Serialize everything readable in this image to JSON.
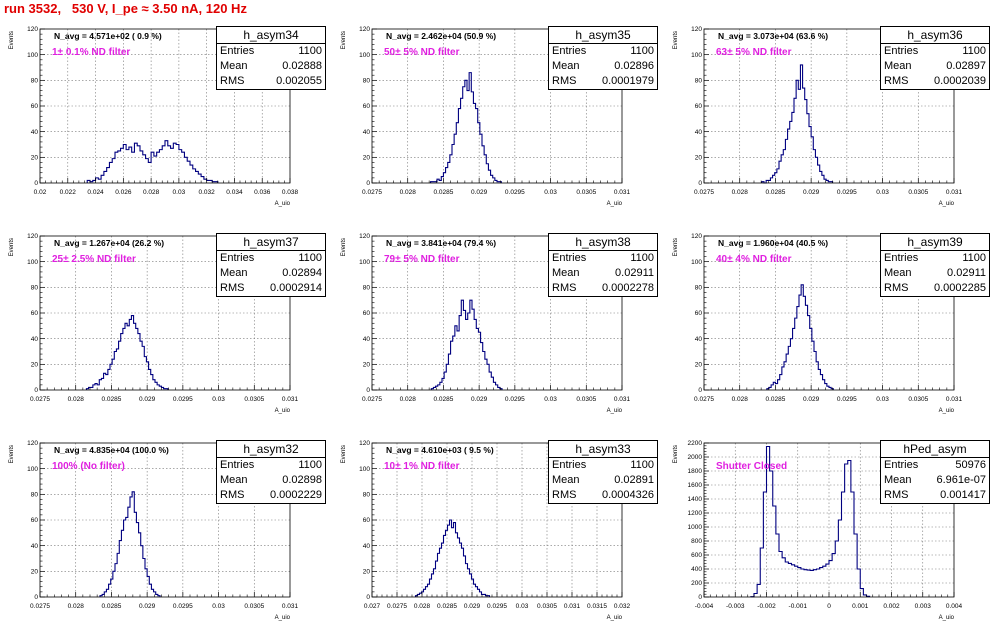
{
  "title": "run 3532,   530 V, I_pe ≈ 3.50 nA, 120 Hz",
  "colors": {
    "title": "#e00000",
    "note": "#e020e0",
    "line": "#000080",
    "grid": "#777777"
  },
  "y_axis_label": "Events",
  "x_axis_label": "A_uio",
  "chart_data": [
    {
      "type": "bar",
      "name": "h_asym34",
      "navg": "N_avg = 4.571e+02 ( 0.9 %)",
      "note": "1± 0.1% ND filter",
      "stats": {
        "entries": "1100",
        "mean": "0.02888",
        "rms": "0.002055"
      },
      "xlim": [
        0.02,
        0.038
      ],
      "ylim": [
        0,
        120
      ],
      "xticks": [
        "0.02",
        "0.022",
        "0.024",
        "0.026",
        "0.028",
        "0.03",
        "0.032",
        "0.034",
        "0.036",
        "0.038"
      ],
      "yticks": [
        "0",
        "20",
        "40",
        "60",
        "80",
        "100",
        "120"
      ],
      "bin_width": 0.0002,
      "x_start": 0.0234,
      "values": [
        2,
        1,
        2,
        4,
        3,
        6,
        9,
        12,
        16,
        19,
        24,
        25,
        27,
        30,
        26,
        28,
        24,
        31,
        29,
        25,
        22,
        19,
        16,
        24,
        21,
        24,
        26,
        29,
        33,
        29,
        27,
        31,
        30,
        26,
        24,
        20,
        17,
        14,
        11,
        9,
        7,
        5,
        3,
        2,
        2,
        1,
        1
      ]
    },
    {
      "type": "bar",
      "name": "h_asym35",
      "navg": "N_avg = 2.462e+04 (50.9 %)",
      "note": "50± 5% ND filter",
      "stats": {
        "entries": "1100",
        "mean": "0.02896",
        "rms": "0.0001979"
      },
      "xlim": [
        0.0275,
        0.031
      ],
      "ylim": [
        0,
        120
      ],
      "xticks": [
        "0.0275",
        "0.028",
        "0.0285",
        "0.029",
        "0.0295",
        "0.03",
        "0.0305",
        "0.031"
      ],
      "yticks": [
        "0",
        "20",
        "40",
        "60",
        "80",
        "100",
        "120"
      ],
      "bin_width": 3e-05,
      "x_start": 0.02832,
      "values": [
        1,
        1,
        1,
        3,
        2,
        5,
        8,
        12,
        16,
        22,
        30,
        38,
        47,
        58,
        66,
        75,
        80,
        72,
        86,
        71,
        62,
        58,
        47,
        38,
        29,
        22,
        15,
        10,
        6,
        4,
        2,
        1,
        1
      ]
    },
    {
      "type": "bar",
      "name": "h_asym36",
      "navg": "N_avg = 3.073e+04 (63.6 %)",
      "note": "63± 5% ND filter",
      "stats": {
        "entries": "1100",
        "mean": "0.02897",
        "rms": "0.0002039"
      },
      "xlim": [
        0.0275,
        0.031
      ],
      "ylim": [
        0,
        120
      ],
      "xticks": [
        "0.0275",
        "0.028",
        "0.0285",
        "0.029",
        "0.0295",
        "0.03",
        "0.0305",
        "0.031"
      ],
      "yticks": [
        "0",
        "20",
        "40",
        "60",
        "80",
        "100",
        "120"
      ],
      "bin_width": 3e-05,
      "x_start": 0.02831,
      "values": [
        1,
        0,
        2,
        2,
        4,
        6,
        8,
        11,
        17,
        22,
        26,
        34,
        42,
        48,
        55,
        66,
        80,
        73,
        92,
        74,
        65,
        54,
        44,
        36,
        26,
        20,
        14,
        9,
        6,
        3,
        2,
        1,
        1
      ]
    },
    {
      "type": "bar",
      "name": "h_asym37",
      "navg": "N_avg = 1.267e+04 (26.2 %)",
      "note": "25± 2.5% ND filter",
      "stats": {
        "entries": "1100",
        "mean": "0.02894",
        "rms": "0.0002914"
      },
      "xlim": [
        0.0275,
        0.031
      ],
      "ylim": [
        0,
        120
      ],
      "xticks": [
        "0.0275",
        "0.028",
        "0.0285",
        "0.029",
        "0.0295",
        "0.03",
        "0.0305",
        "0.031"
      ],
      "yticks": [
        "0",
        "20",
        "40",
        "60",
        "80",
        "100",
        "120"
      ],
      "bin_width": 3e-05,
      "x_start": 0.02815,
      "values": [
        1,
        2,
        2,
        4,
        5,
        4,
        8,
        9,
        13,
        12,
        16,
        20,
        24,
        30,
        32,
        38,
        44,
        48,
        52,
        50,
        55,
        58,
        52,
        48,
        44,
        38,
        34,
        26,
        22,
        16,
        12,
        8,
        6,
        4,
        3,
        2,
        1,
        1
      ]
    },
    {
      "type": "bar",
      "name": "h_asym38",
      "navg": "N_avg = 3.841e+04 (79.4 %)",
      "note": "79± 5% ND filter",
      "stats": {
        "entries": "1100",
        "mean": "0.02911",
        "rms": "0.0002278"
      },
      "xlim": [
        0.0275,
        0.031
      ],
      "ylim": [
        0,
        120
      ],
      "xticks": [
        "0.0275",
        "0.028",
        "0.0285",
        "0.029",
        "0.0295",
        "0.03",
        "0.0305",
        "0.031"
      ],
      "yticks": [
        "0",
        "20",
        "40",
        "60",
        "80",
        "100",
        "120"
      ],
      "bin_width": 3e-05,
      "x_start": 0.02833,
      "values": [
        1,
        2,
        3,
        4,
        6,
        9,
        14,
        20,
        28,
        38,
        42,
        50,
        46,
        58,
        70,
        62,
        55,
        60,
        70,
        63,
        55,
        48,
        45,
        37,
        30,
        24,
        20,
        14,
        10,
        6,
        4,
        2,
        1
      ]
    },
    {
      "type": "bar",
      "name": "h_asym39",
      "navg": "N_avg = 1.960e+04 (40.5 %)",
      "note": "40± 4% ND filter",
      "stats": {
        "entries": "1100",
        "mean": "0.02911",
        "rms": "0.0002285"
      },
      "xlim": [
        0.0275,
        0.031
      ],
      "ylim": [
        0,
        120
      ],
      "xticks": [
        "0.0275",
        "0.028",
        "0.0285",
        "0.029",
        "0.0295",
        "0.03",
        "0.0305",
        "0.031"
      ],
      "yticks": [
        "0",
        "20",
        "40",
        "60",
        "80",
        "100",
        "120"
      ],
      "bin_width": 3e-05,
      "x_start": 0.02838,
      "values": [
        1,
        2,
        4,
        6,
        5,
        8,
        12,
        18,
        22,
        28,
        34,
        40,
        48,
        56,
        65,
        74,
        82,
        73,
        66,
        58,
        48,
        38,
        30,
        22,
        16,
        12,
        8,
        5,
        3,
        2,
        1
      ]
    },
    {
      "type": "bar",
      "name": "h_asym32",
      "navg": "N_avg = 4.835e+04 (100.0 %)",
      "note": "100% (No filter)",
      "stats": {
        "entries": "1100",
        "mean": "0.02898",
        "rms": "0.0002229"
      },
      "xlim": [
        0.0275,
        0.031
      ],
      "ylim": [
        0,
        120
      ],
      "xticks": [
        "0.0275",
        "0.028",
        "0.0285",
        "0.029",
        "0.0295",
        "0.03",
        "0.0305",
        "0.031"
      ],
      "yticks": [
        "0",
        "20",
        "40",
        "60",
        "80",
        "100",
        "120"
      ],
      "bin_width": 3e-05,
      "x_start": 0.02834,
      "values": [
        1,
        2,
        4,
        6,
        10,
        14,
        20,
        26,
        34,
        44,
        52,
        60,
        62,
        70,
        78,
        82,
        66,
        58,
        50,
        40,
        30,
        22,
        16,
        10,
        6,
        4,
        2,
        1
      ]
    },
    {
      "type": "bar",
      "name": "h_asym33",
      "navg": "N_avg = 4.610e+03 ( 9.5 %)",
      "note": "10± 1% ND filter",
      "stats": {
        "entries": "1100",
        "mean": "0.02891",
        "rms": "0.0004326"
      },
      "xlim": [
        0.027,
        0.032
      ],
      "ylim": [
        0,
        120
      ],
      "xticks": [
        "0.027",
        "0.0275",
        "0.028",
        "0.0285",
        "0.029",
        "0.0295",
        "0.03",
        "0.0305",
        "0.031",
        "0.0315",
        "0.032"
      ],
      "yticks": [
        "0",
        "20",
        "40",
        "60",
        "80",
        "100",
        "120"
      ],
      "bin_width": 4e-05,
      "x_start": 0.02787,
      "values": [
        1,
        2,
        3,
        4,
        6,
        8,
        10,
        14,
        18,
        22,
        28,
        34,
        38,
        42,
        48,
        52,
        56,
        60,
        54,
        58,
        50,
        46,
        42,
        38,
        32,
        26,
        22,
        18,
        14,
        10,
        8,
        6,
        4,
        2,
        2,
        1,
        1
      ]
    },
    {
      "type": "bar",
      "name": "hPed_asym",
      "navg": "",
      "note": "Shutter Closed",
      "stats": {
        "entries": "50976",
        "mean": "6.961e-07",
        "rms": "0.001417"
      },
      "xlim": [
        -0.004,
        0.004
      ],
      "ylim": [
        0,
        2200
      ],
      "xticks": [
        "-0.004",
        "-0.003",
        "-0.002",
        "-0.001",
        "0",
        "0.001",
        "0.002",
        "0.003",
        "0.004"
      ],
      "yticks": [
        "0",
        "200",
        "400",
        "600",
        "800",
        "1000",
        "1200",
        "1400",
        "1600",
        "1800",
        "2000",
        "2200"
      ],
      "bin_width": 0.0001,
      "x_start": -0.0025,
      "values": [
        5,
        50,
        180,
        700,
        1500,
        2150,
        1800,
        1300,
        900,
        650,
        560,
        500,
        480,
        460,
        440,
        420,
        400,
        390,
        385,
        380,
        390,
        400,
        420,
        440,
        470,
        520,
        620,
        800,
        1100,
        1500,
        1900,
        1950,
        1500,
        900,
        400,
        120,
        30,
        10
      ]
    }
  ]
}
